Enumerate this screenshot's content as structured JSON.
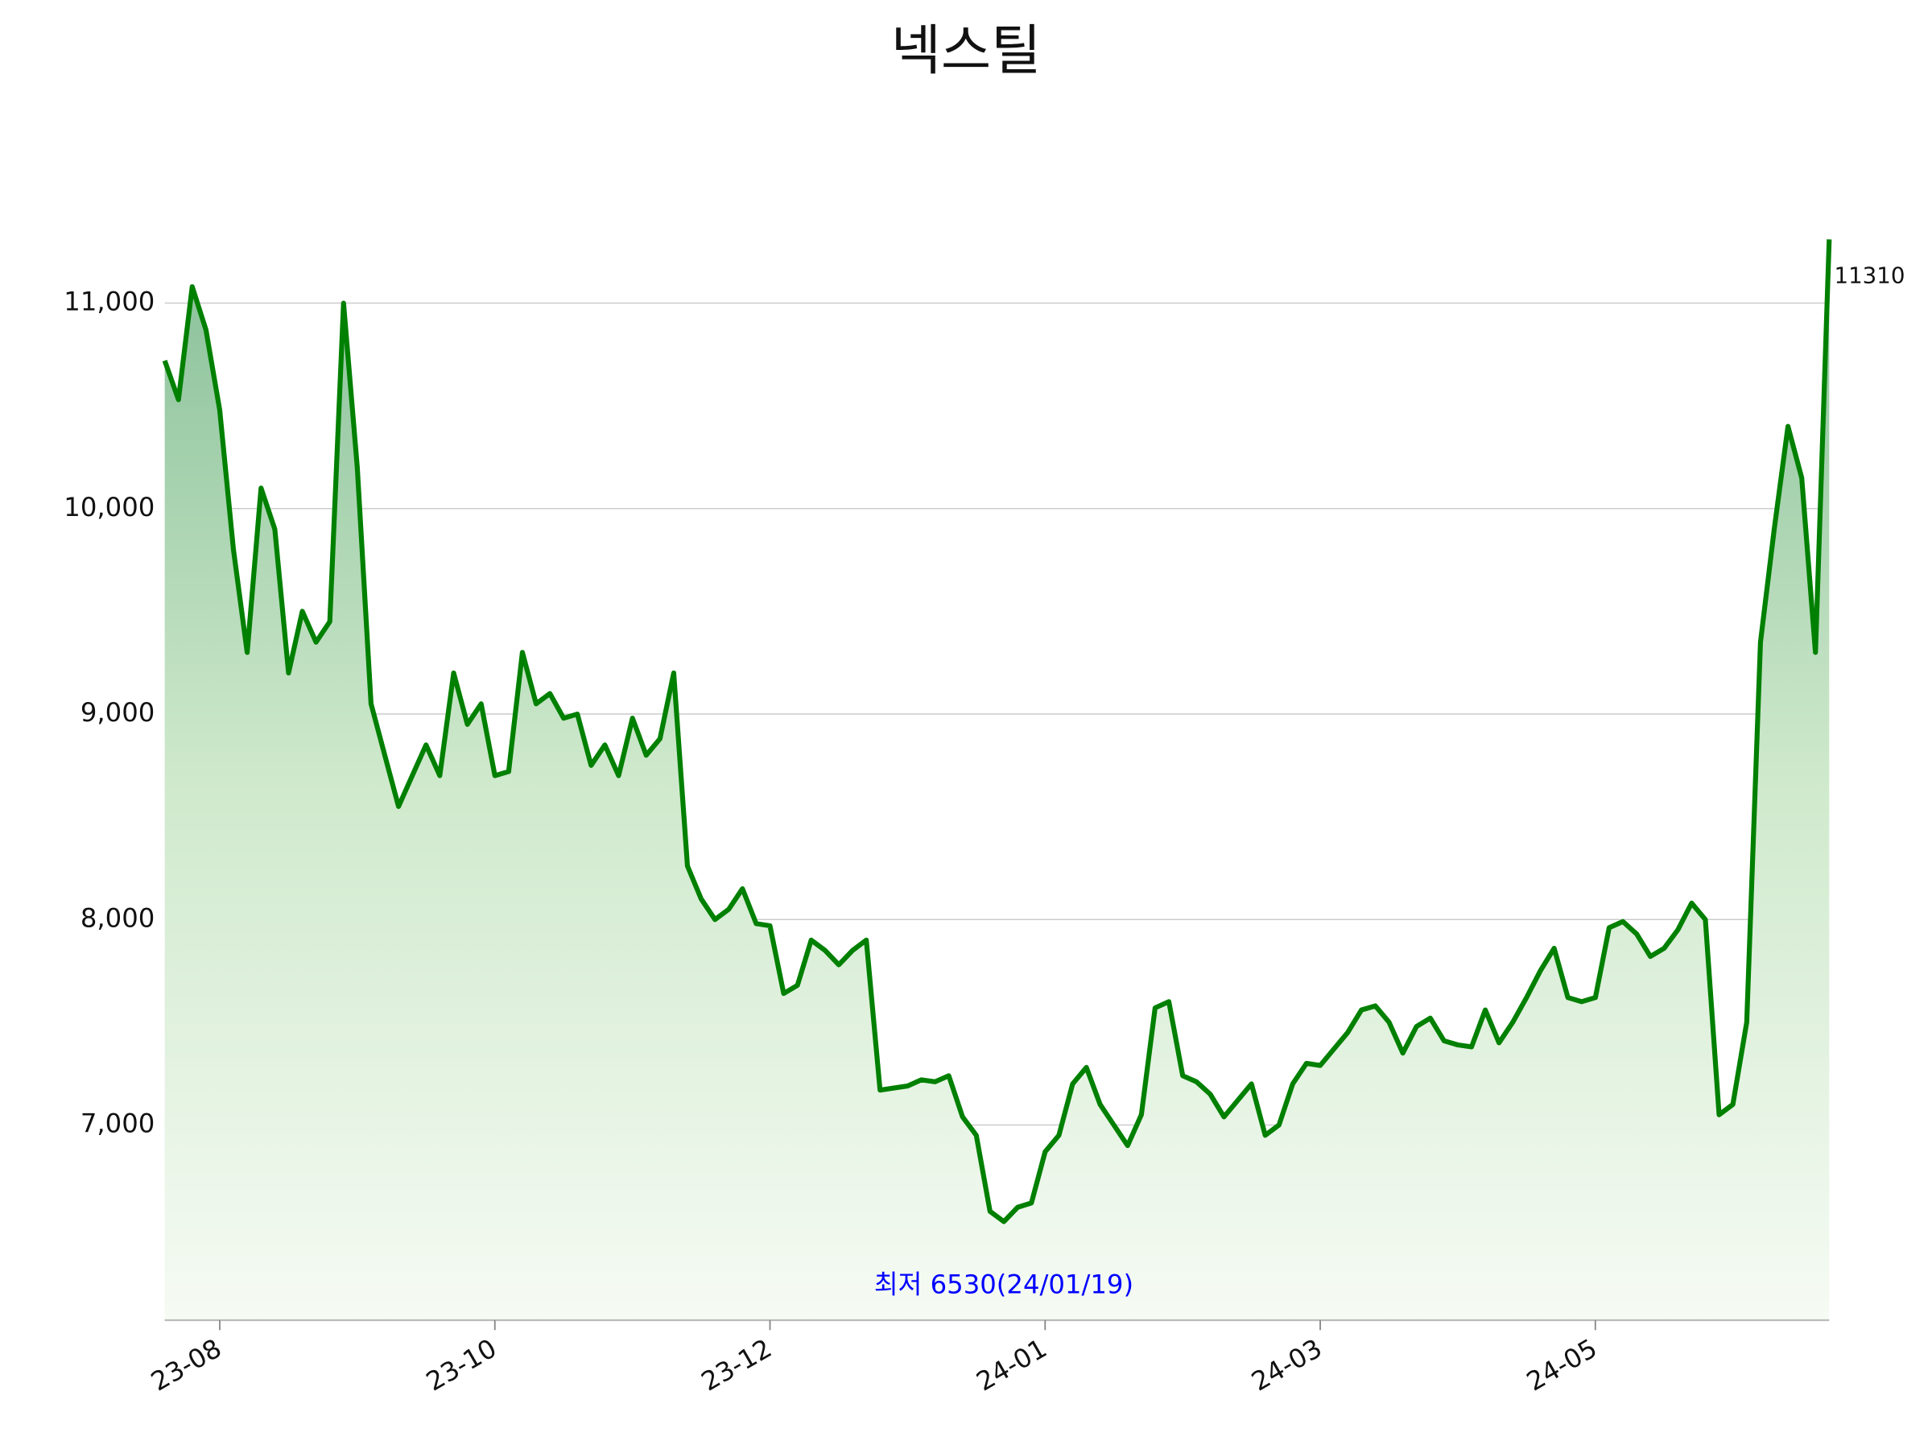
{
  "chart_data": {
    "type": "line",
    "title": "넥스틸",
    "categories": [
      null,
      null,
      null,
      null,
      "23-08",
      null,
      null,
      null,
      null,
      null,
      null,
      null,
      null,
      null,
      null,
      null,
      null,
      null,
      null,
      null,
      null,
      null,
      null,
      null,
      "23-10",
      null,
      null,
      null,
      null,
      null,
      null,
      null,
      null,
      null,
      null,
      null,
      null,
      null,
      null,
      null,
      null,
      null,
      null,
      null,
      "23-12",
      null,
      null,
      null,
      null,
      null,
      null,
      null,
      null,
      null,
      null,
      null,
      null,
      null,
      null,
      null,
      null,
      null,
      null,
      null,
      "24-01",
      null,
      null,
      null,
      null,
      null,
      null,
      null,
      null,
      null,
      null,
      null,
      null,
      null,
      null,
      null,
      null,
      null,
      null,
      null,
      "24-03",
      null,
      null,
      null,
      null,
      null,
      null,
      null,
      null,
      null,
      null,
      null,
      null,
      null,
      null,
      null,
      null,
      null,
      null,
      null,
      "24-05",
      null,
      null,
      null,
      null,
      null,
      null,
      null,
      null,
      null,
      null,
      null,
      null,
      null,
      null,
      null,
      null,
      null
    ],
    "values": [
      10720,
      10530,
      11080,
      10870,
      10480,
      9800,
      9300,
      10100,
      9900,
      9200,
      9500,
      9350,
      9450,
      11000,
      10200,
      9050,
      8800,
      8550,
      8700,
      8850,
      8700,
      9200,
      8950,
      9050,
      8700,
      8720,
      9300,
      9050,
      9100,
      8980,
      9000,
      8750,
      8850,
      8700,
      8980,
      8800,
      8880,
      9200,
      8260,
      8100,
      8000,
      8050,
      8150,
      7980,
      7970,
      7640,
      7680,
      7900,
      7850,
      7780,
      7850,
      7900,
      7170,
      7180,
      7190,
      7220,
      7210,
      7240,
      7040,
      6950,
      6580,
      6530,
      6600,
      6620,
      6870,
      6950,
      7200,
      7280,
      7100,
      7000,
      6900,
      7050,
      7570,
      7600,
      7240,
      7210,
      7150,
      7040,
      7120,
      7200,
      6950,
      7000,
      7200,
      7300,
      7290,
      7370,
      7450,
      7560,
      7580,
      7500,
      7350,
      7480,
      7520,
      7410,
      7390,
      7380,
      7560,
      7400,
      7500,
      7620,
      7750,
      7860,
      7620,
      7600,
      7620,
      7960,
      7990,
      7930,
      7820,
      7860,
      7950,
      8080,
      8000,
      7050,
      7100,
      7500,
      9350,
      9900,
      10400,
      10150,
      9300,
      11310
    ],
    "color": "#008000",
    "ylim": [
      6050,
      11330
    ],
    "yticks": [
      {
        "value": 7000,
        "label": "7,000"
      },
      {
        "value": 8000,
        "label": "8,000"
      },
      {
        "value": 9000,
        "label": "9,000"
      },
      {
        "value": 10000,
        "label": "10,000"
      },
      {
        "value": 11000,
        "label": "11,000"
      }
    ],
    "grid": true,
    "annotations": [
      {
        "text": "최저 6530(24/01/19)",
        "color": "#0000ff"
      }
    ]
  }
}
